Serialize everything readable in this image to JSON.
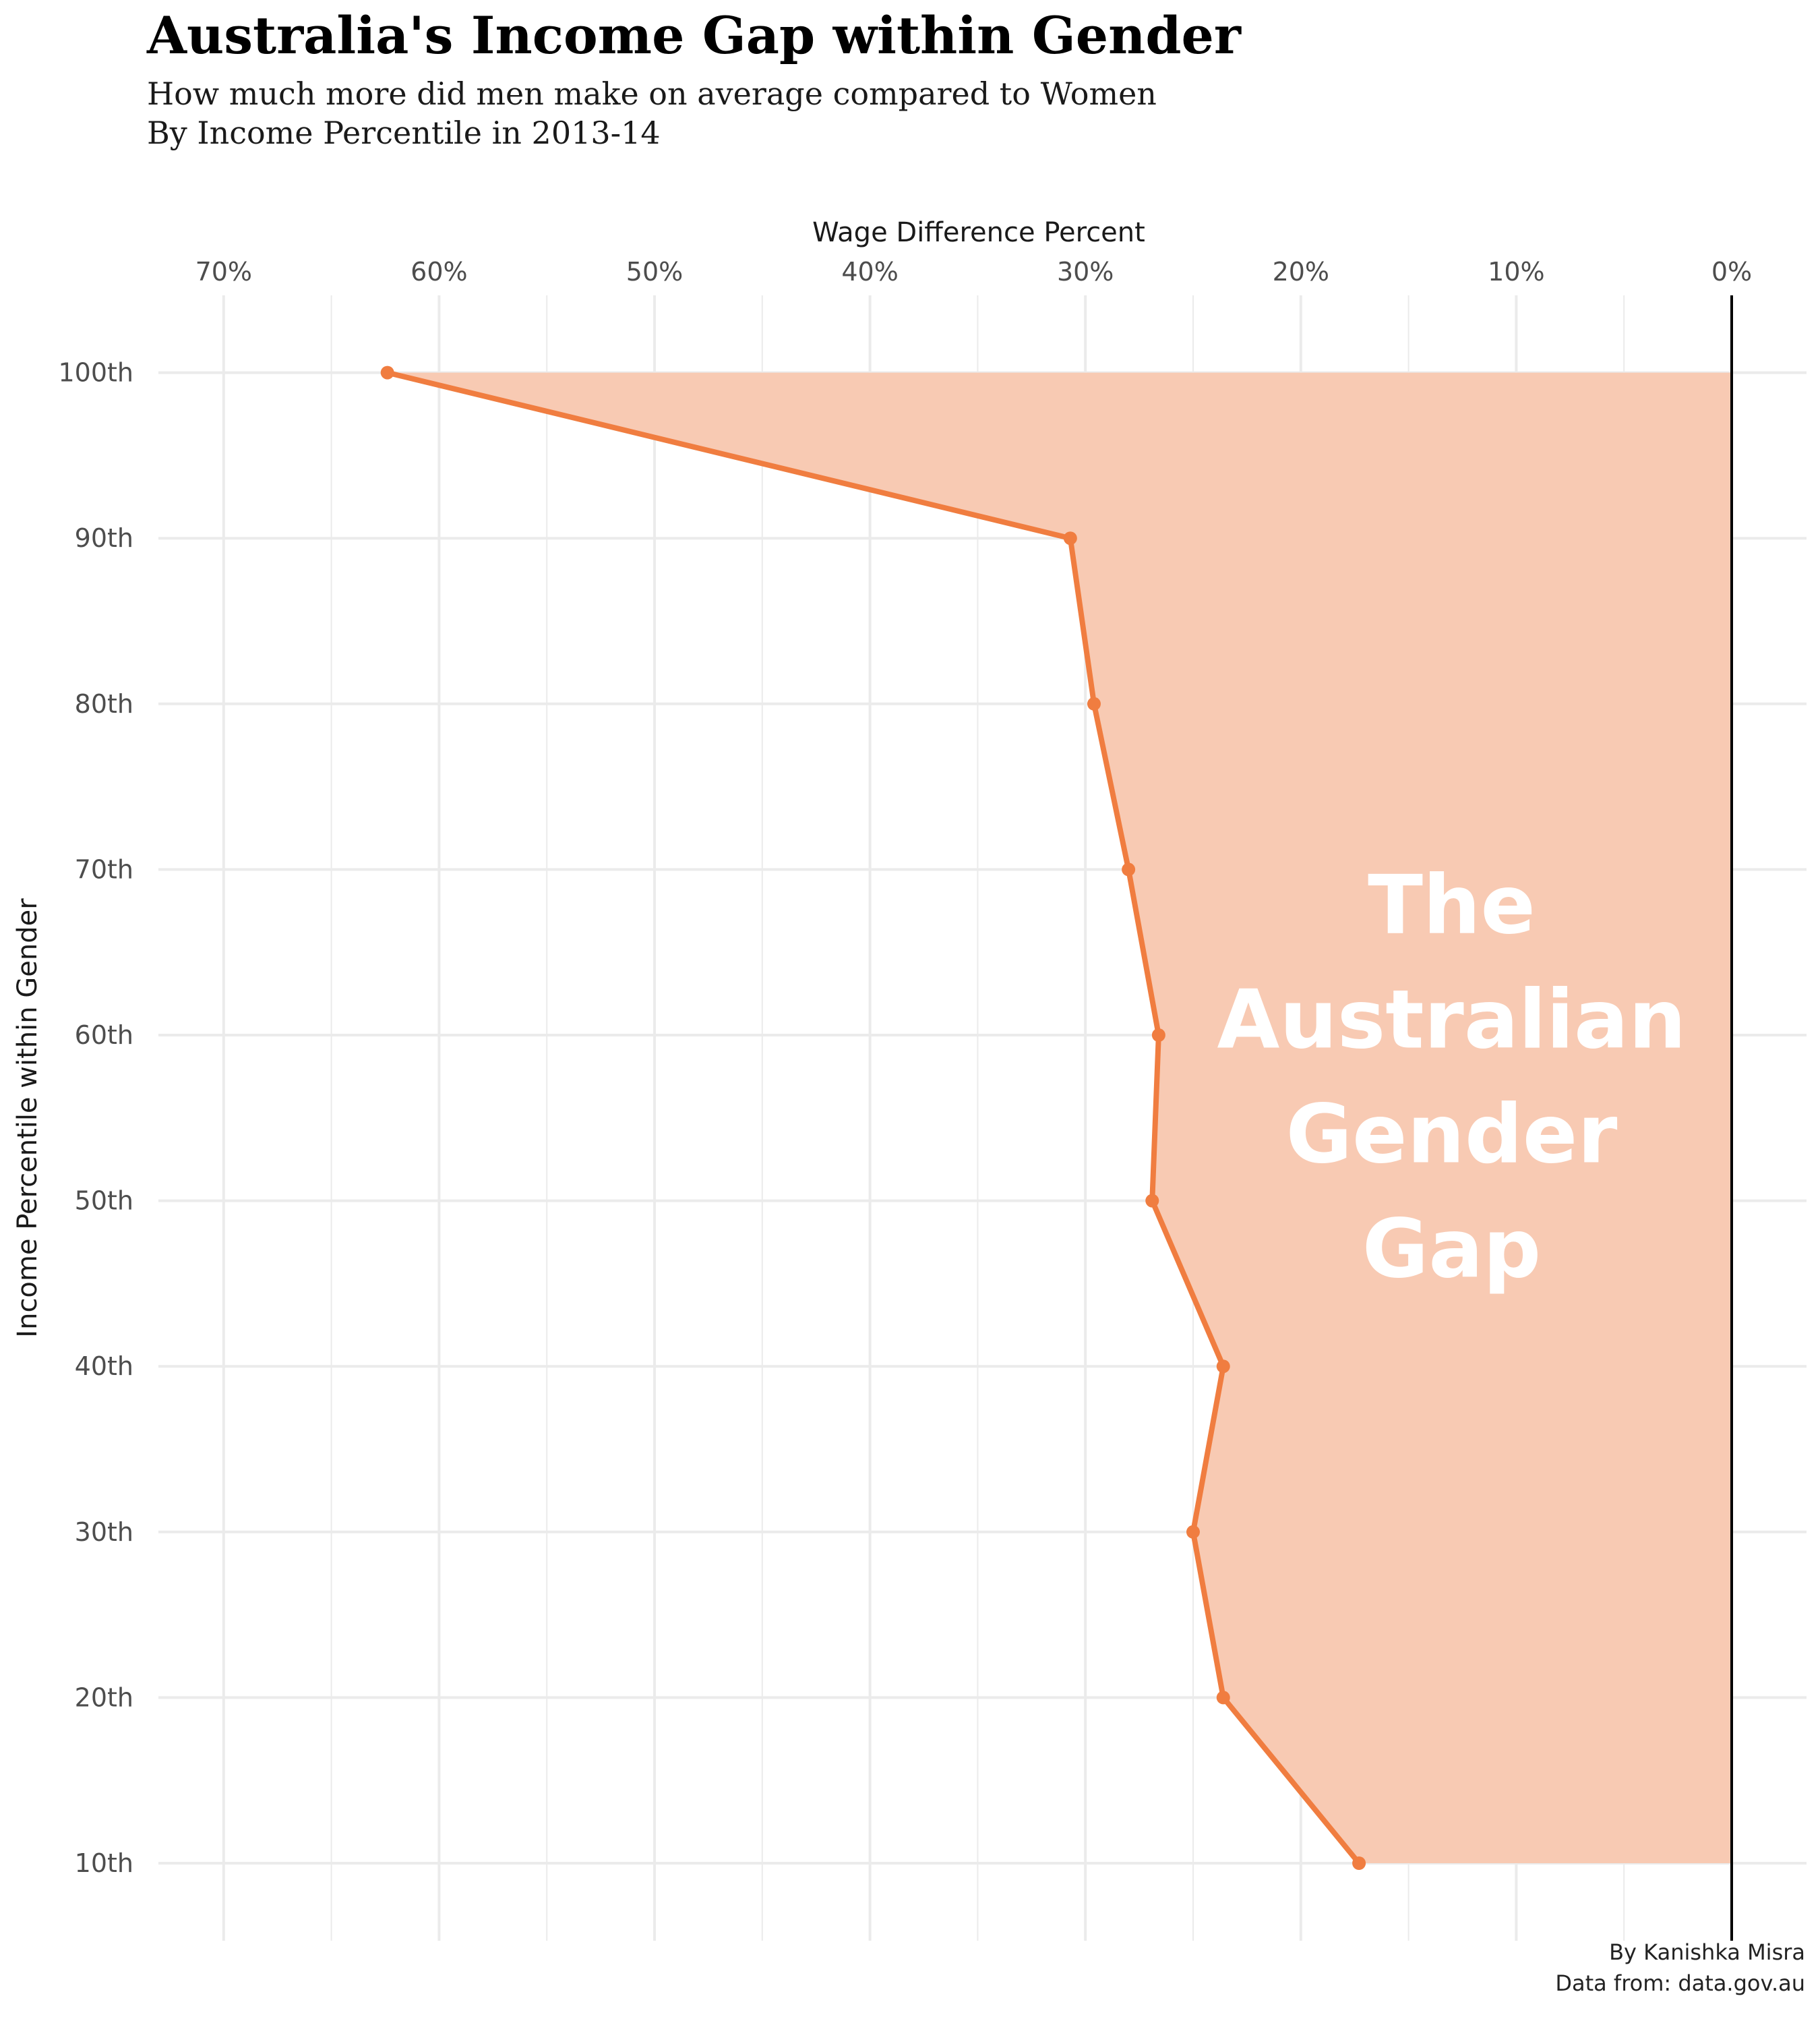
{
  "title": "Australia's Income Gap within Gender",
  "subtitle": [
    "How much more did men make on average compared to Women",
    "By Income Percentile in 2013-14"
  ],
  "caption": [
    "By Kanishka Misra",
    "Data from: data.gov.au"
  ],
  "colors": {
    "line": "#F07D40",
    "area": "#F8CAB3",
    "annotation_text": "#FFFFFF",
    "grid": "#EBEBEB",
    "zero_line": "#000000",
    "tick_text": "#4D4D4D"
  },
  "chart_data": {
    "type": "area",
    "orientation": "horizontal",
    "xlabel": "Wage Difference Percent",
    "ylabel": "Income Percentile within Gender",
    "x_axis_position": "top",
    "x_reversed": true,
    "xlim": [
      0,
      70
    ],
    "xticks": [
      70,
      60,
      50,
      40,
      30,
      20,
      10,
      0
    ],
    "xtick_labels": [
      "70%",
      "60%",
      "50%",
      "40%",
      "30%",
      "20%",
      "10%",
      "0%"
    ],
    "yticks": [
      10,
      20,
      30,
      40,
      50,
      60,
      70,
      80,
      90,
      100
    ],
    "ytick_labels": [
      "10th",
      "20th",
      "30th",
      "40th",
      "50th",
      "60th",
      "70th",
      "80th",
      "90th",
      "100th"
    ],
    "grid": true,
    "points": [
      {
        "percentile": 10,
        "gap": 17.3
      },
      {
        "percentile": 20,
        "gap": 23.6
      },
      {
        "percentile": 30,
        "gap": 25.0
      },
      {
        "percentile": 40,
        "gap": 23.6
      },
      {
        "percentile": 50,
        "gap": 26.9
      },
      {
        "percentile": 60,
        "gap": 26.6
      },
      {
        "percentile": 70,
        "gap": 28.0
      },
      {
        "percentile": 80,
        "gap": 29.6
      },
      {
        "percentile": 90,
        "gap": 30.7
      },
      {
        "percentile": 100,
        "gap": 62.4
      }
    ],
    "annotation": {
      "lines": [
        "The",
        "Australian",
        "Gender",
        "Gap"
      ],
      "x": 13,
      "y": 57.5
    }
  }
}
